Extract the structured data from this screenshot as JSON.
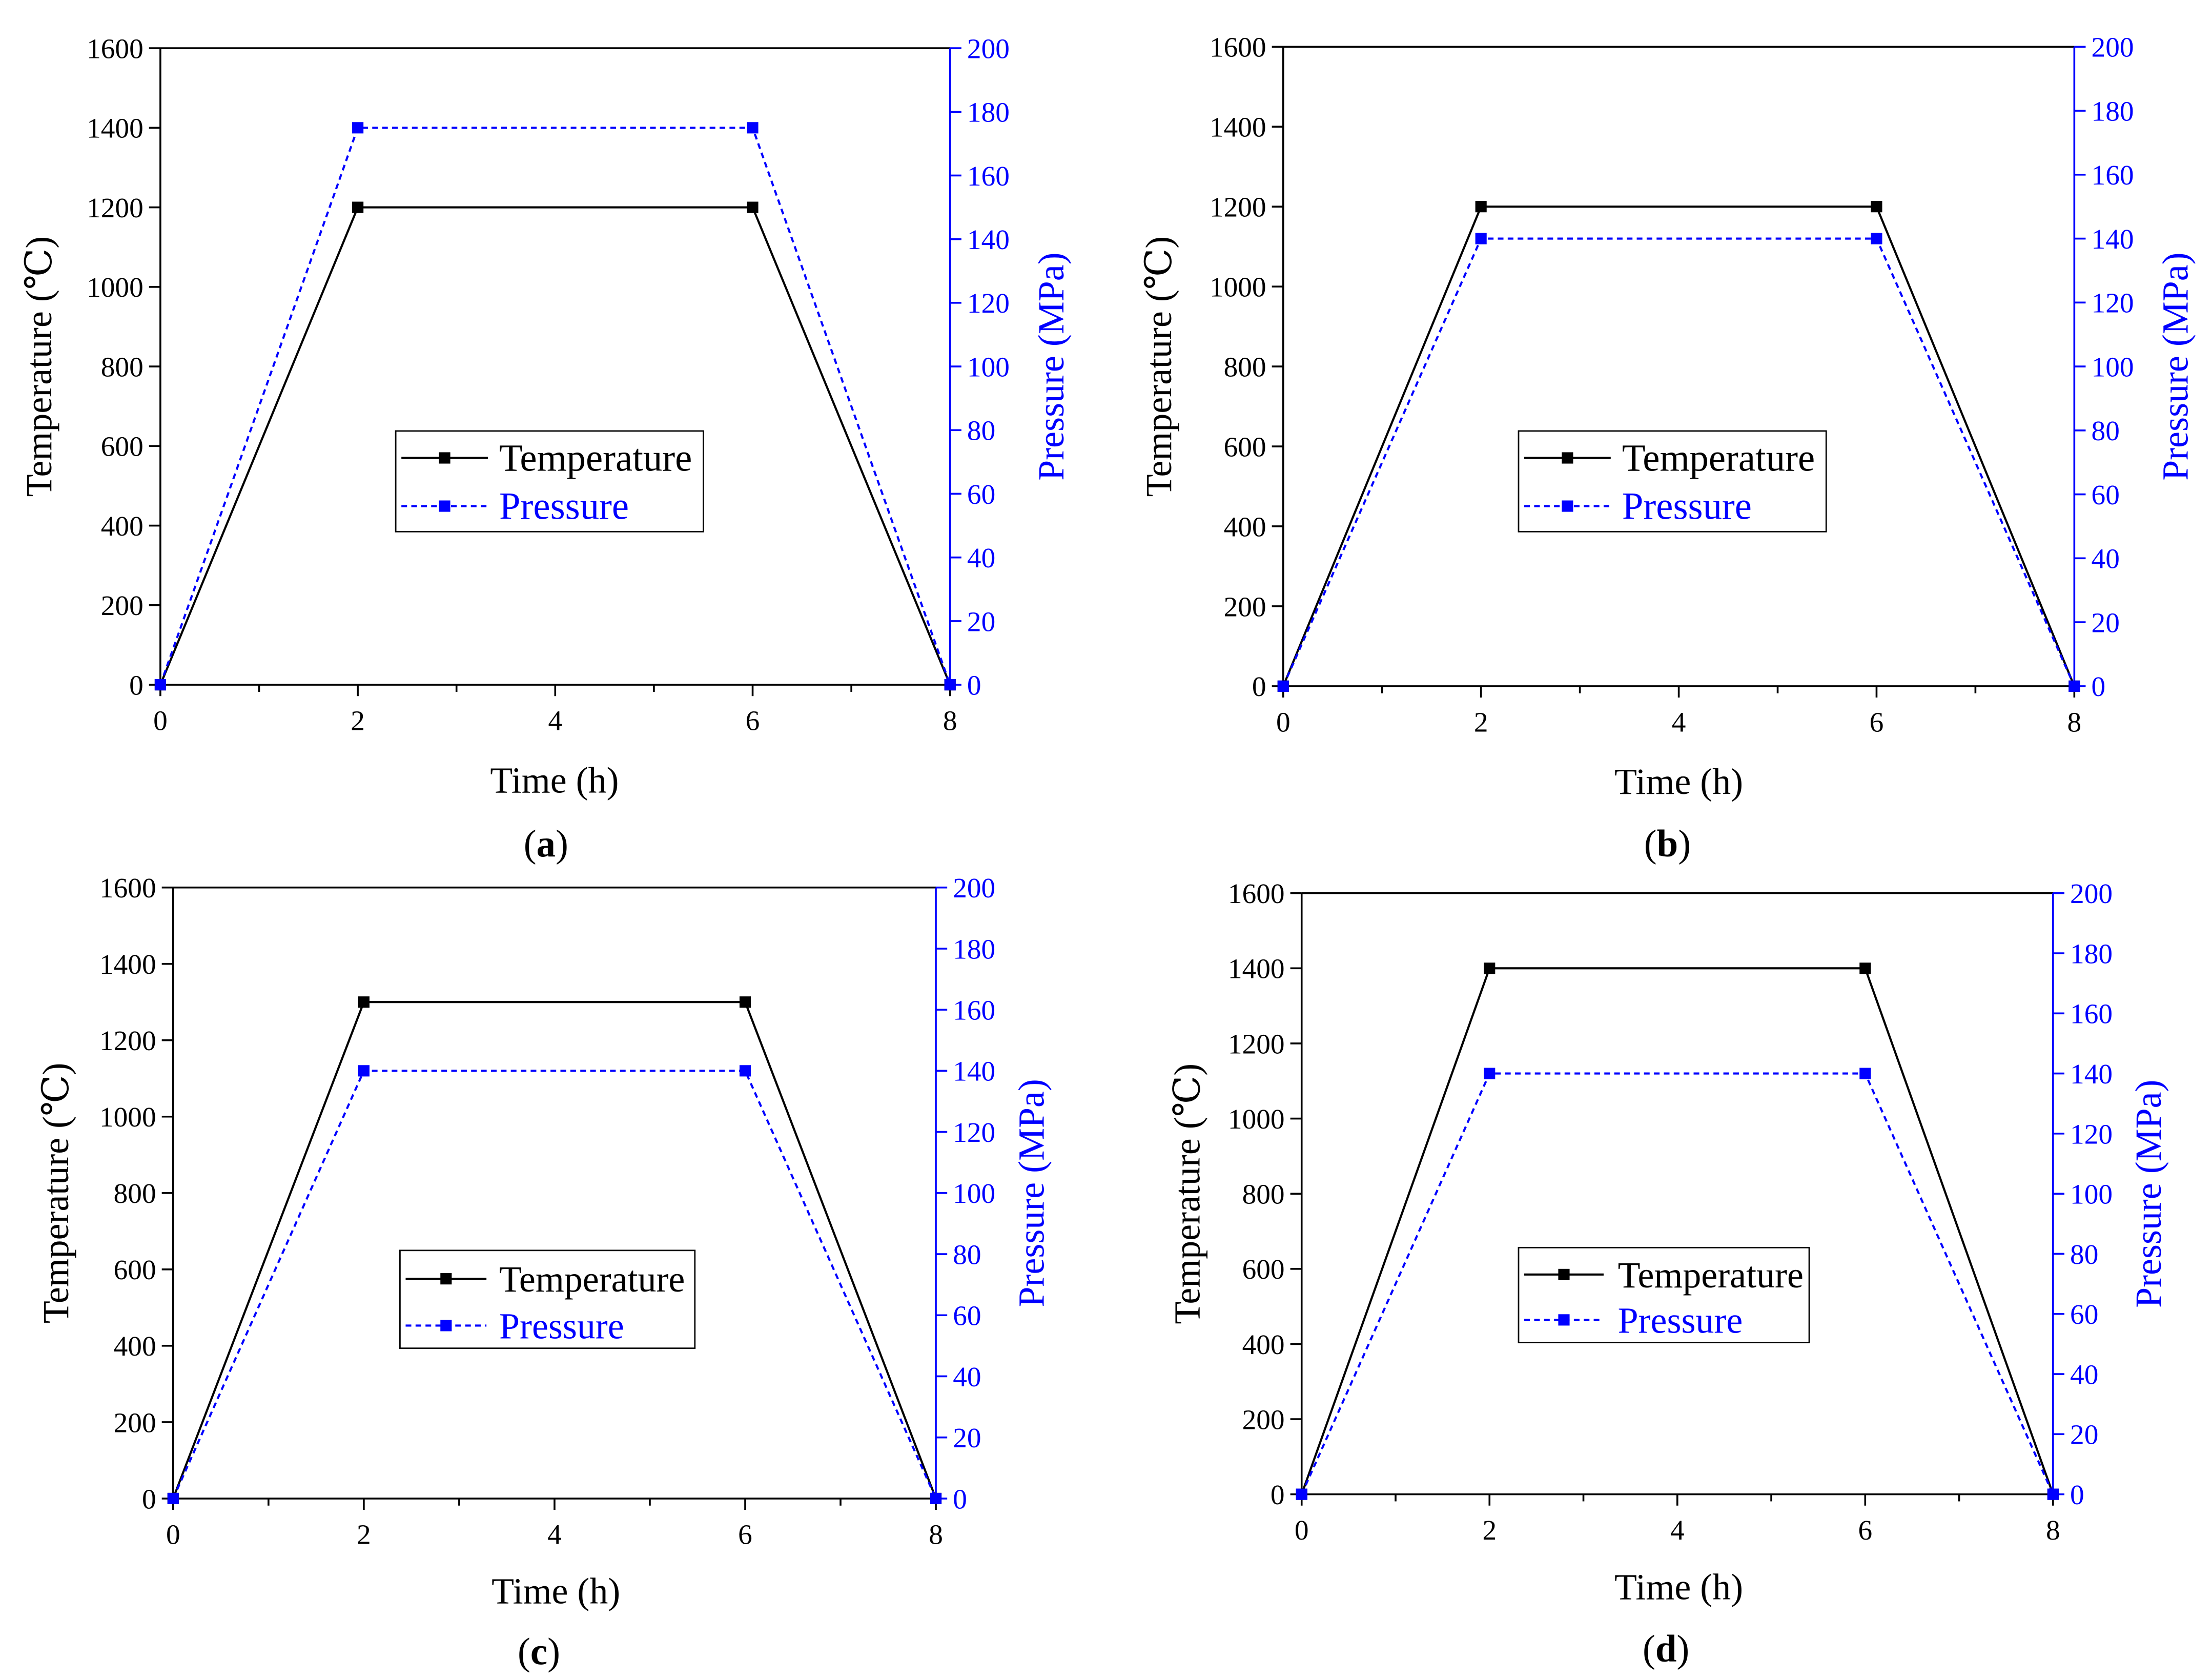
{
  "chart_data": [
    {
      "type": "line",
      "panel": {
        "open": "(",
        "letter": "a",
        "close": ")"
      },
      "x": [
        0,
        2,
        6,
        8
      ],
      "xlabel": "Time (h)",
      "ylabel": "Temperature (℃)",
      "y2label": "Pressure (MPa)",
      "xlim": [
        0,
        8
      ],
      "ylim": [
        0,
        1600
      ],
      "y2lim": [
        0,
        200
      ],
      "x_ticks": [
        0,
        2,
        4,
        6,
        8
      ],
      "x_minor_ticks": [
        1,
        3,
        5,
        7
      ],
      "y_ticks": [
        0,
        200,
        400,
        600,
        800,
        1000,
        1200,
        1400,
        1600
      ],
      "y2_ticks": [
        0,
        20,
        40,
        60,
        80,
        100,
        120,
        140,
        160,
        180,
        200
      ],
      "y2_color": "#0000FF",
      "series": [
        {
          "name": "Temperature",
          "axis": "left",
          "color": "#000000",
          "style": "solid",
          "values": [
            0,
            1200,
            1200,
            0
          ]
        },
        {
          "name": "Pressure",
          "axis": "right",
          "color": "#0000FF",
          "style": "dashed",
          "values": [
            0,
            175,
            175,
            0
          ]
        }
      ]
    },
    {
      "type": "line",
      "panel": {
        "open": "(",
        "letter": "b",
        "close": ")"
      },
      "x": [
        0,
        2,
        6,
        8
      ],
      "xlabel": "Time (h)",
      "ylabel": "Temperature (℃)",
      "y2label": "Pressure (MPa)",
      "xlim": [
        0,
        8
      ],
      "ylim": [
        0,
        1600
      ],
      "y2lim": [
        0,
        200
      ],
      "x_ticks": [
        0,
        2,
        4,
        6,
        8
      ],
      "x_minor_ticks": [
        1,
        3,
        5,
        7
      ],
      "y_ticks": [
        0,
        200,
        400,
        600,
        800,
        1000,
        1200,
        1400,
        1600
      ],
      "y2_ticks": [
        0,
        20,
        40,
        60,
        80,
        100,
        120,
        140,
        160,
        180,
        200
      ],
      "y2_color": "#0000FF",
      "series": [
        {
          "name": "Temperature",
          "axis": "left",
          "color": "#000000",
          "style": "solid",
          "values": [
            0,
            1200,
            1200,
            0
          ]
        },
        {
          "name": "Pressure",
          "axis": "right",
          "color": "#0000FF",
          "style": "dashed",
          "values": [
            0,
            140,
            140,
            0
          ]
        }
      ]
    },
    {
      "type": "line",
      "panel": {
        "open": "(",
        "letter": "c",
        "close": ")"
      },
      "x": [
        0,
        2,
        6,
        8
      ],
      "xlabel": "Time (h)",
      "ylabel": "Temperature (℃)",
      "y2label": "Pressure (MPa)",
      "xlim": [
        0,
        8
      ],
      "ylim": [
        0,
        1600
      ],
      "y2lim": [
        0,
        200
      ],
      "x_ticks": [
        0,
        2,
        4,
        6,
        8
      ],
      "x_minor_ticks": [
        1,
        3,
        5,
        7
      ],
      "y_ticks": [
        0,
        200,
        400,
        600,
        800,
        1000,
        1200,
        1400,
        1600
      ],
      "y2_ticks": [
        0,
        20,
        40,
        60,
        80,
        100,
        120,
        140,
        160,
        180,
        200
      ],
      "y2_color": "#0000FF",
      "series": [
        {
          "name": "Temperature",
          "axis": "left",
          "color": "#000000",
          "style": "solid",
          "values": [
            0,
            1300,
            1300,
            0
          ]
        },
        {
          "name": "Pressure",
          "axis": "right",
          "color": "#0000FF",
          "style": "dashed",
          "values": [
            0,
            140,
            140,
            0
          ]
        }
      ]
    },
    {
      "type": "line",
      "panel": {
        "open": "(",
        "letter": "d",
        "close": ")"
      },
      "x": [
        0,
        2,
        6,
        8
      ],
      "xlabel": "Time (h)",
      "ylabel": "Temperature (℃)",
      "y2label": "Pressure (MPa)",
      "xlim": [
        0,
        8
      ],
      "ylim": [
        0,
        1600
      ],
      "y2lim": [
        0,
        200
      ],
      "x_ticks": [
        0,
        2,
        4,
        6,
        8
      ],
      "x_minor_ticks": [
        1,
        3,
        5,
        7
      ],
      "y_ticks": [
        0,
        200,
        400,
        600,
        800,
        1000,
        1200,
        1400,
        1600
      ],
      "y2_ticks": [
        0,
        20,
        40,
        60,
        80,
        100,
        120,
        140,
        160,
        180,
        200
      ],
      "y2_color": "#0000FF",
      "series": [
        {
          "name": "Temperature",
          "axis": "left",
          "color": "#000000",
          "style": "solid",
          "values": [
            0,
            1400,
            1400,
            0
          ]
        },
        {
          "name": "Pressure",
          "axis": "right",
          "color": "#0000FF",
          "style": "dashed",
          "values": [
            0,
            140,
            140,
            0
          ]
        }
      ]
    }
  ]
}
